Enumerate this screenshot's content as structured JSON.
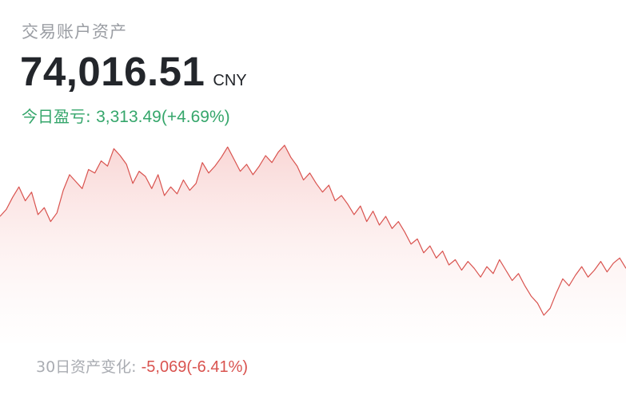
{
  "account": {
    "title": "交易账户资产",
    "balance": "74,016.51",
    "currency": "CNY"
  },
  "today": {
    "label": "今日盈亏: ",
    "value": "3,313.49(+4.69%)"
  },
  "change_30d": {
    "label": "30日资产变化: ",
    "value": "-5,069(-6.41%)"
  },
  "colors": {
    "line": "#d9534f",
    "positive": "#35a66b",
    "negative": "#d9534f"
  },
  "chart_data": {
    "type": "area",
    "y": [
      77200,
      77600,
      78300,
      78900,
      78100,
      78600,
      77300,
      77700,
      76900,
      77400,
      78700,
      79600,
      79200,
      78800,
      79900,
      79700,
      80400,
      80100,
      81100,
      80700,
      80200,
      79100,
      79800,
      79500,
      78800,
      79600,
      78400,
      78900,
      78500,
      79300,
      78700,
      79100,
      80300,
      79700,
      80100,
      80600,
      81200,
      80500,
      79800,
      80200,
      79600,
      80100,
      80700,
      80300,
      80900,
      81300,
      80600,
      80100,
      79300,
      79700,
      79100,
      78600,
      79000,
      78100,
      78400,
      77900,
      77300,
      77800,
      76900,
      77500,
      76700,
      77200,
      76500,
      76900,
      76300,
      75600,
      75900,
      75100,
      75500,
      74800,
      75200,
      74400,
      74700,
      74100,
      74600,
      74200,
      73700,
      74300,
      73900,
      74700,
      74100,
      73500,
      73900,
      73200,
      72600,
      72200,
      71500,
      71900,
      72800,
      73600,
      73200,
      73800,
      74300,
      73700,
      74100,
      74600,
      74000,
      74500,
      74800,
      74200
    ]
  }
}
